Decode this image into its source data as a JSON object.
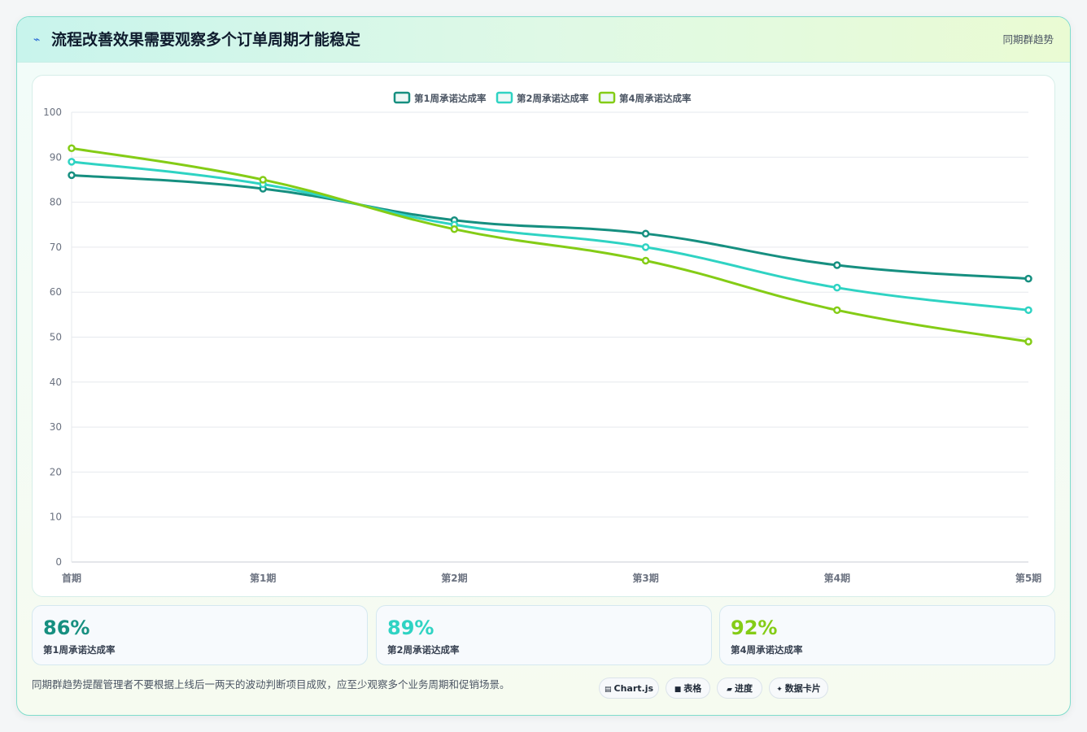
{
  "header": {
    "title": "流程改善效果需要观察多个订单周期才能稳定",
    "tag": "同期群趋势"
  },
  "colors": {
    "week1": "#168f80",
    "week2": "#2fd3c3",
    "week4": "#84cc16"
  },
  "chart_data": {
    "type": "line",
    "categories": [
      "首期",
      "第1期",
      "第2期",
      "第3期",
      "第4期",
      "第5期"
    ],
    "series": [
      {
        "name": "第1周承诺达成率",
        "color": "#168f80",
        "values": [
          86,
          83,
          76,
          73,
          66,
          63
        ]
      },
      {
        "name": "第2周承诺达成率",
        "color": "#2fd3c3",
        "values": [
          89,
          84,
          75,
          70,
          61,
          56
        ]
      },
      {
        "name": "第4周承诺达成率",
        "color": "#84cc16",
        "values": [
          92,
          85,
          74,
          67,
          56,
          49
        ]
      }
    ],
    "ylim": [
      0,
      100
    ],
    "yticks": [
      0,
      10,
      20,
      30,
      40,
      50,
      60,
      70,
      80,
      90,
      100
    ],
    "grid": true,
    "legend_position": "top-center"
  },
  "stats": [
    {
      "value": "86%",
      "label": "第1周承诺达成率",
      "color": "#168f80"
    },
    {
      "value": "89%",
      "label": "第2周承诺达成率",
      "color": "#2fd3c3"
    },
    {
      "value": "92%",
      "label": "第4周承诺达成率",
      "color": "#84cc16"
    }
  ],
  "footer": {
    "note": "同期群趋势提醒管理者不要根据上线后一两天的波动判断项目成败，应至少观察多个业务周期和促销场景。",
    "pills": [
      {
        "icon": "chart-icon",
        "label": "Chart.js"
      },
      {
        "icon": "table-icon",
        "label": "表格"
      },
      {
        "icon": "progress-icon",
        "label": "进度"
      },
      {
        "icon": "sparkle-icon",
        "label": "数据卡片"
      }
    ]
  }
}
